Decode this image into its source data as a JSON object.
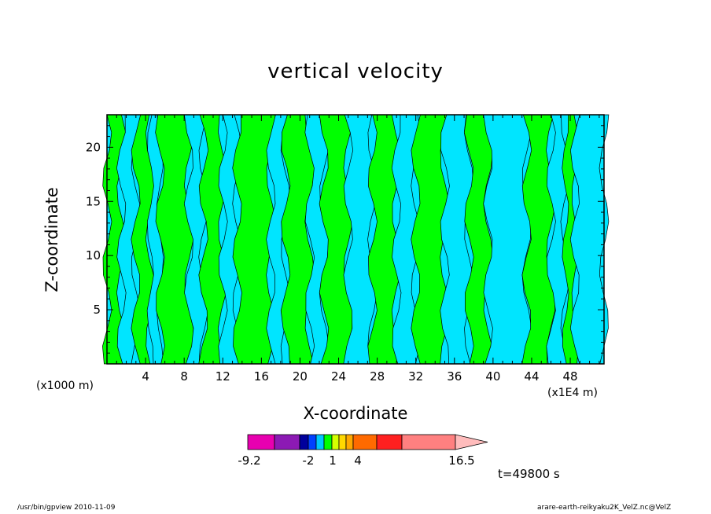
{
  "window": {
    "title": "vertical velocity",
    "footer_left": "/usr/bin/gpview   2010-11-09",
    "footer_right": "arare-earth-reikyaku2K_VelZ.nc@VelZ",
    "time_stamp": "t=49800 s"
  },
  "colors": {
    "positive": "#00ff00",
    "negative": "#00e5ff",
    "contour": "#000000"
  },
  "chart_data": {
    "type": "heatmap",
    "title": "vertical velocity",
    "xlabel": "X-coordinate",
    "ylabel": "Z-coordinate",
    "x_unit_left": "(x1000 m)",
    "x_unit_right": "(x1E4 m)",
    "xlim": [
      0,
      51.5
    ],
    "ylim": [
      0,
      23
    ],
    "x_ticks": [
      4,
      8,
      12,
      16,
      20,
      24,
      28,
      32,
      36,
      40,
      44,
      48
    ],
    "y_ticks": [
      5,
      10,
      15,
      20
    ],
    "columns": [
      {
        "x0": 0.0,
        "x1": 1.5,
        "v": 1
      },
      {
        "x0": 1.5,
        "x1": 3.0,
        "v": -1
      },
      {
        "x0": 3.0,
        "x1": 4.5,
        "v": 1
      },
      {
        "x0": 4.5,
        "x1": 5.5,
        "v": -1
      },
      {
        "x0": 5.5,
        "x1": 8.5,
        "v": 1
      },
      {
        "x0": 8.5,
        "x1": 10.0,
        "v": -1
      },
      {
        "x0": 10.0,
        "x1": 12.0,
        "v": 1
      },
      {
        "x0": 12.0,
        "x1": 13.5,
        "v": -1
      },
      {
        "x0": 13.5,
        "x1": 17.0,
        "v": 1
      },
      {
        "x0": 17.0,
        "x1": 18.5,
        "v": -1
      },
      {
        "x0": 18.5,
        "x1": 21.0,
        "v": 1
      },
      {
        "x0": 21.0,
        "x1": 22.5,
        "v": -1
      },
      {
        "x0": 22.5,
        "x1": 25.0,
        "v": 1
      },
      {
        "x0": 25.0,
        "x1": 27.5,
        "v": -1
      },
      {
        "x0": 27.5,
        "x1": 30.0,
        "v": 1
      },
      {
        "x0": 30.0,
        "x1": 32.0,
        "v": -1
      },
      {
        "x0": 32.0,
        "x1": 35.0,
        "v": 1
      },
      {
        "x0": 35.0,
        "x1": 37.5,
        "v": -1
      },
      {
        "x0": 37.5,
        "x1": 39.5,
        "v": 1
      },
      {
        "x0": 39.5,
        "x1": 43.5,
        "v": -1
      },
      {
        "x0": 43.5,
        "x1": 46.0,
        "v": 1
      },
      {
        "x0": 46.0,
        "x1": 47.5,
        "v": -1
      },
      {
        "x0": 47.5,
        "x1": 48.5,
        "v": 1
      },
      {
        "x0": 48.5,
        "x1": 51.5,
        "v": -1
      }
    ],
    "colorbar": {
      "colors": [
        "#e800b0",
        "#8c1ab4",
        "#00009c",
        "#0040ff",
        "#00c8ff",
        "#00ff00",
        "#d4ff00",
        "#ffd800",
        "#ffa800",
        "#ff6a00",
        "#ff2020",
        "#ff8080",
        "#ffbcbc"
      ],
      "tick_labels": [
        "-9.2",
        "-2",
        "1",
        "4",
        "16.5"
      ]
    }
  }
}
